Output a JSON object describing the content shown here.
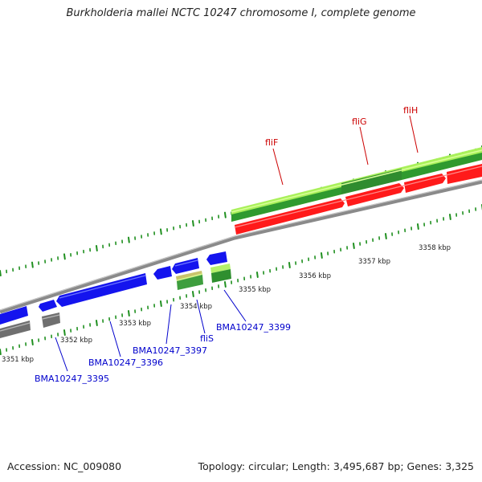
{
  "title": "Burkholderia mallei NCTC 10247 chromosome I, complete genome",
  "footer": {
    "accession": "Accession: NC_009080",
    "summary": "Topology: circular; Length: 3,495,687 bp; Genes: 3,325"
  },
  "colors": {
    "backbone": "#8a8a8a",
    "forward_cds": "#ff1a1a",
    "reverse_cds": "#1414ee",
    "gray_feature": "#6f6f6f",
    "light_green": "#9cf03c",
    "dark_green": "#2f9a2f",
    "tick": "#1e8f1e",
    "dot": "#1e8f1e",
    "forward_label": "#cc0000",
    "reverse_label": "#0000cc",
    "kbp_label": "#222222"
  },
  "kbp_labels": [
    "3351 kbp",
    "3352 kbp",
    "3353 kbp",
    "3354 kbp",
    "3355 kbp",
    "3356 kbp",
    "3357 kbp",
    "3358 kbp"
  ],
  "forward_gene_labels": [
    "fliF",
    "fliG",
    "fliH"
  ],
  "reverse_gene_labels": [
    "BMA10247_3395",
    "BMA10247_3396",
    "BMA10247_3397",
    "fliS",
    "BMA10247_3399"
  ]
}
